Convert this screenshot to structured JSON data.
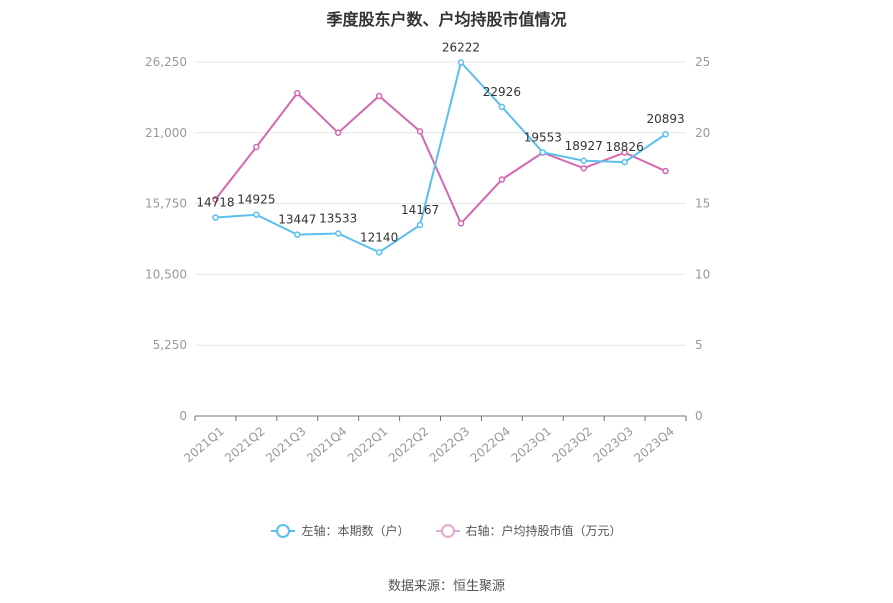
{
  "title": "季度股东户数、户均持股市值情况",
  "source": "数据来源：恒生聚源",
  "colors": {
    "left_series": "#5bc0eb",
    "right_series": "#d468b1",
    "grid": "#e6e6e6",
    "axis": "#6e7079",
    "tick_text": "#999999",
    "label_text": "#333333"
  },
  "chart_data": {
    "type": "line",
    "categories": [
      "2021Q1",
      "2021Q2",
      "2021Q3",
      "2021Q4",
      "2022Q1",
      "2022Q2",
      "2022Q3",
      "2022Q4",
      "2023Q1",
      "2023Q2",
      "2023Q3",
      "2023Q4"
    ],
    "left_axis": {
      "min": 0,
      "max": 26250,
      "ticks": [
        "0",
        "5,250",
        "10,500",
        "15,750",
        "21,000",
        "26,250"
      ]
    },
    "right_axis": {
      "min": 0,
      "max": 25,
      "ticks": [
        "0",
        "5",
        "10",
        "15",
        "20",
        "25"
      ]
    },
    "series": [
      {
        "name": "左轴：本期数（户）",
        "axis": "left",
        "values": [
          14718,
          14925,
          13447,
          13533,
          12140,
          14167,
          26222,
          22926,
          19553,
          18927,
          18826,
          20893
        ],
        "labels": [
          "14718",
          "14925",
          "13447",
          "13533",
          "12140",
          "14167",
          "26222",
          "22926",
          "19553",
          "18927",
          "18826",
          "20893"
        ]
      },
      {
        "name": "右轴：户均持股市值（万元）",
        "axis": "right",
        "values": [
          15.3,
          19.0,
          22.8,
          20.0,
          22.6,
          20.1,
          13.6,
          16.7,
          18.6,
          17.5,
          18.6,
          17.3
        ]
      }
    ],
    "grid": true,
    "legend_position": "bottom"
  }
}
